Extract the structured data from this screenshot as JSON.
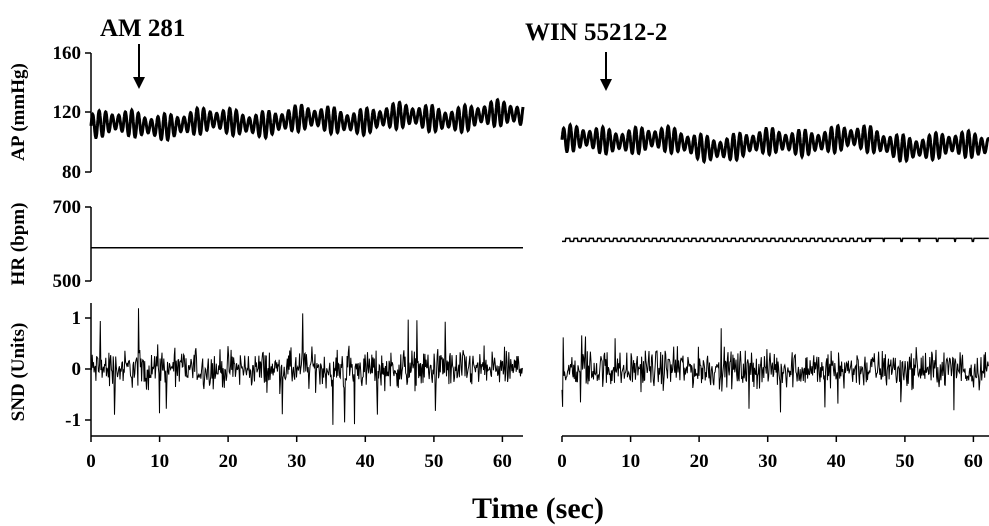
{
  "chart_data": {
    "type": "line",
    "xlabel": "Time (sec)",
    "x_ticks": [
      "0",
      "10",
      "20",
      "30",
      "40",
      "50",
      "60"
    ],
    "xlim": [
      0,
      63
    ],
    "panels": [
      {
        "annotation": "AM 281",
        "arrow_at_sec": 7,
        "series": [
          {
            "ylabel": "AP (mmHg)",
            "y_ticks": [
              "160",
              "120",
              "80"
            ],
            "ylim": [
              80,
              160
            ],
            "mean_start": 111,
            "mean_end": 118,
            "oscillation_amplitude": 9
          },
          {
            "ylabel": "HR (bpm)",
            "y_ticks": [
              "700",
              "500"
            ],
            "ylim": [
              500,
              700
            ],
            "value": 590
          },
          {
            "ylabel": "SND (Units)",
            "y_ticks": [
              "1",
              "0",
              "-1"
            ],
            "ylim": [
              -1.2,
              1.2
            ],
            "noise_range": [
              -1.1,
              1.2
            ]
          }
        ]
      },
      {
        "annotation": "WIN 55212-2",
        "arrow_at_sec": 6.5,
        "series": [
          {
            "ylabel": "AP (mmHg)",
            "mean_start": 100,
            "mean_end": 99,
            "oscillation_amplitude": 9
          },
          {
            "ylabel": "HR (bpm)",
            "value": 615,
            "dip": 607
          },
          {
            "ylabel": "SND (Units)",
            "noise_range": [
              -0.9,
              0.8
            ]
          }
        ]
      }
    ]
  }
}
